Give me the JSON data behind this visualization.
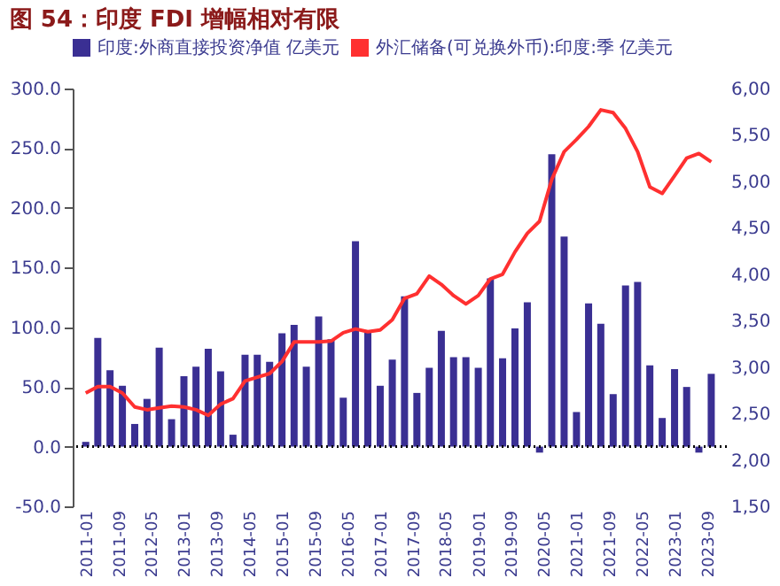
{
  "chart_data": {
    "type": "bar",
    "title": "图 54：印度 FDI 增幅相对有限",
    "x": [
      "2011-01",
      "2011-04",
      "2011-07",
      "2011-10",
      "2012-01",
      "2012-04",
      "2012-07",
      "2012-10",
      "2013-01",
      "2013-04",
      "2013-07",
      "2013-10",
      "2014-01",
      "2014-04",
      "2014-07",
      "2014-10",
      "2015-01",
      "2015-04",
      "2015-07",
      "2015-10",
      "2016-01",
      "2016-04",
      "2016-07",
      "2016-10",
      "2017-01",
      "2017-04",
      "2017-07",
      "2017-10",
      "2018-01",
      "2018-04",
      "2018-07",
      "2018-10",
      "2019-01",
      "2019-04",
      "2019-07",
      "2019-10",
      "2020-01",
      "2020-04",
      "2020-07",
      "2020-10",
      "2021-01",
      "2021-04",
      "2021-07",
      "2021-10",
      "2022-01",
      "2022-04",
      "2022-07",
      "2022-10",
      "2023-01",
      "2023-04",
      "2023-07",
      "2023-10"
    ],
    "series": [
      {
        "name": "印度:外商直接投资净值 亿美元",
        "color": "#3a2f93",
        "values": [
          4,
          91,
          64,
          51,
          19,
          40,
          83,
          23,
          59,
          67,
          82,
          63,
          10,
          77,
          77,
          71,
          95,
          102,
          67,
          109,
          90,
          41,
          172,
          97,
          51,
          73,
          126,
          45,
          66,
          97,
          75,
          75,
          66,
          141,
          74,
          99,
          121,
          -5,
          245,
          176,
          29,
          120,
          103,
          44,
          135,
          138,
          68,
          24,
          65,
          50,
          -5,
          61
        ]
      },
      {
        "name": "外汇储备(可兑换外币):印度:季 亿美元",
        "type": "line",
        "axis": "y2",
        "color": "#ff3030",
        "values": [
          2.72,
          2.79,
          2.79,
          2.72,
          2.57,
          2.54,
          2.56,
          2.58,
          2.57,
          2.54,
          2.48,
          2.6,
          2.66,
          2.85,
          2.89,
          2.93,
          3.06,
          3.27,
          3.27,
          3.27,
          3.28,
          3.37,
          3.41,
          3.38,
          3.4,
          3.51,
          3.74,
          3.79,
          3.98,
          3.89,
          3.77,
          3.68,
          3.77,
          3.95,
          4.0,
          4.24,
          4.44,
          4.57,
          5.02,
          5.32,
          5.45,
          5.59,
          5.77,
          5.74,
          5.57,
          5.32,
          4.94,
          4.87,
          5.06,
          5.25,
          5.3,
          5.21
        ]
      }
    ],
    "xlim": [
      "2010-12-01",
      "2023-11-20"
    ],
    "xticks": [
      "2011-01",
      "2011-09",
      "2012-05",
      "2013-01",
      "2013-09",
      "2014-05",
      "2015-01",
      "2015-09",
      "2016-05",
      "2017-01",
      "2017-09",
      "2018-05",
      "2019-01",
      "2019-09",
      "2020-05",
      "2021-01",
      "2021-09",
      "2022-05",
      "2023-01",
      "2023-09"
    ],
    "ylim": [
      -50,
      300
    ],
    "yticks": [
      {
        "value": -50,
        "label": "-50.0"
      },
      {
        "value": 0,
        "label": "0.0"
      },
      {
        "value": 50,
        "label": "50.0"
      },
      {
        "value": 100,
        "label": "100.0"
      },
      {
        "value": 150,
        "label": "150.0"
      },
      {
        "value": 200,
        "label": "200.0"
      },
      {
        "value": 250,
        "label": "250.0"
      },
      {
        "value": 300,
        "label": "300.0"
      }
    ],
    "y2lim": [
      1.5,
      6.0
    ],
    "y2ticks": [
      {
        "value": 1.5,
        "label": "1,50"
      },
      {
        "value": 2,
        "label": "2,00"
      },
      {
        "value": 2.5,
        "label": "2,50"
      },
      {
        "value": 3,
        "label": "3,00"
      },
      {
        "value": 3.5,
        "label": "3,50"
      },
      {
        "value": 4,
        "label": "4,00"
      },
      {
        "value": 4.5,
        "label": "4,50"
      },
      {
        "value": 5,
        "label": "5,00"
      },
      {
        "value": 5.5,
        "label": "5,50"
      },
      {
        "value": 6,
        "label": "6,00"
      }
    ],
    "ref_lines": [
      {
        "axis": "y",
        "value": 0,
        "color": "#000000",
        "line_style": "dotted"
      }
    ],
    "grid": false,
    "legend": "top"
  }
}
